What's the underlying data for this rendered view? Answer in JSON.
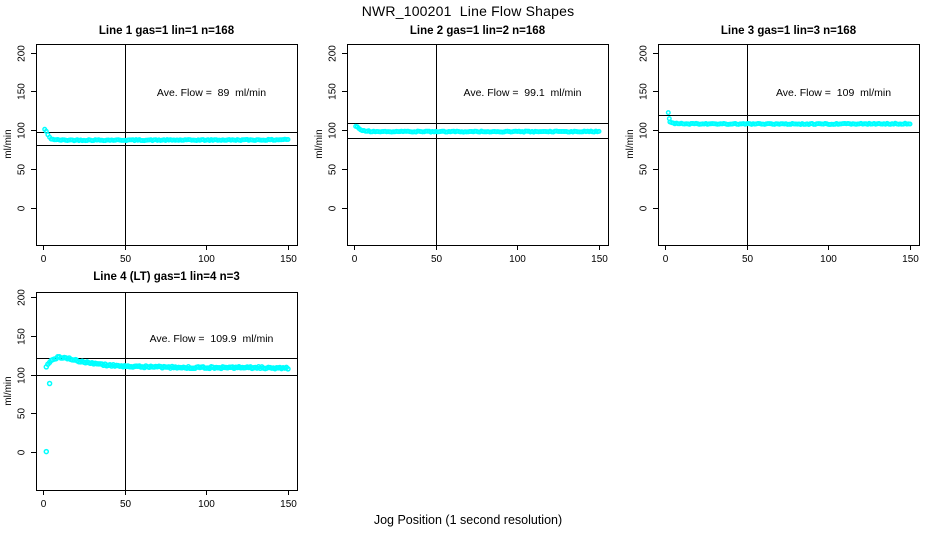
{
  "page": {
    "main_title": "NWR_100201  Line Flow Shapes",
    "x_axis_label": "Jog Position (1 second resolution)",
    "background_color": "#ffffff",
    "point_color": "#00FFFF",
    "line_color": "#000000"
  },
  "chart_data": [
    {
      "type": "scatter",
      "title": "Line 1 gas=1 lin=1 n=168",
      "annotation": "Ave. Flow =  89  ml/min",
      "ave_flow_ml_min": 89,
      "n_points": 168,
      "ylabel": "ml/min",
      "x_ticks": [
        "0",
        "50",
        "100",
        "150"
      ],
      "y_ticks": [
        "0",
        "50",
        "100",
        "150",
        "200"
      ],
      "xlim": [
        -4.3,
        155.5
      ],
      "ylim": [
        -48.4,
        211.1
      ],
      "vline_x": 50,
      "hlines": [
        97.9,
        80.1
      ],
      "series": {
        "x_start": 1,
        "x_end": 150,
        "noise": 0.7,
        "anchors": [
          [
            1,
            100.8
          ],
          [
            2,
            98.5
          ],
          [
            3,
            93.5
          ],
          [
            4,
            90.5
          ],
          [
            5,
            88.8
          ],
          [
            6,
            88
          ],
          [
            8,
            87.4
          ],
          [
            12,
            87
          ],
          [
            40,
            87
          ],
          [
            90,
            87
          ],
          [
            140,
            87.3
          ],
          [
            148,
            87.8
          ],
          [
            150,
            88
          ]
        ]
      },
      "outliers": []
    },
    {
      "type": "scatter",
      "title": "Line 2 gas=1 lin=2 n=168",
      "annotation": "Ave. Flow =  99.1  ml/min",
      "ave_flow_ml_min": 99.1,
      "n_points": 168,
      "ylabel": "ml/min",
      "x_ticks": [
        "0",
        "50",
        "100",
        "150"
      ],
      "y_ticks": [
        "0",
        "50",
        "100",
        "150",
        "200"
      ],
      "xlim": [
        -4.3,
        155.5
      ],
      "ylim": [
        -48.4,
        211.1
      ],
      "vline_x": 50,
      "hlines": [
        109.0,
        89.2
      ],
      "series": {
        "x_start": 1,
        "x_end": 150,
        "noise": 0.65,
        "anchors": [
          [
            1,
            104.8
          ],
          [
            2,
            104
          ],
          [
            3,
            102.3
          ],
          [
            4,
            100.8
          ],
          [
            5,
            99.8
          ],
          [
            7,
            98.8
          ],
          [
            10,
            98.2
          ],
          [
            16,
            98
          ],
          [
            60,
            98
          ],
          [
            120,
            98
          ],
          [
            150,
            98.2
          ]
        ]
      },
      "outliers": []
    },
    {
      "type": "scatter",
      "title": "Line 3 gas=1 lin=3 n=168",
      "annotation": "Ave. Flow =  109  ml/min",
      "ave_flow_ml_min": 109,
      "n_points": 168,
      "ylabel": "ml/min",
      "x_ticks": [
        "0",
        "50",
        "100",
        "150"
      ],
      "y_ticks": [
        "0",
        "50",
        "100",
        "150",
        "200"
      ],
      "xlim": [
        -4.3,
        155.5
      ],
      "ylim": [
        -48.4,
        211.1
      ],
      "vline_x": 50,
      "hlines": [
        119.9,
        98.1
      ],
      "series": {
        "x_start": 3,
        "x_end": 150,
        "noise": 0.65,
        "anchors": [
          [
            3,
            110.5
          ],
          [
            4,
            109.3
          ],
          [
            5,
            108.7
          ],
          [
            8,
            108.2
          ],
          [
            14,
            108
          ],
          [
            60,
            107.8
          ],
          [
            120,
            107.9
          ],
          [
            150,
            108.2
          ]
        ]
      },
      "outliers": [
        [
          2,
          122.5
        ],
        [
          2.6,
          114.8
        ]
      ]
    },
    {
      "type": "scatter",
      "title": "Line 4 (LT) gas=1 lin=4 n=3",
      "annotation": "Ave. Flow =  109.9  ml/min",
      "ave_flow_ml_min": 109.9,
      "n_points": 3,
      "ylabel": "ml/min",
      "x_ticks": [
        "0",
        "50",
        "100",
        "150"
      ],
      "y_ticks": [
        "0",
        "50",
        "100",
        "150",
        "200"
      ],
      "xlim": [
        -4.3,
        155.5
      ],
      "ylim": [
        -49.1,
        206.6
      ],
      "vline_x": 50,
      "hlines": [
        120.9,
        98.9
      ],
      "series": {
        "x_start": 2,
        "x_end": 150,
        "noise": 1.15,
        "anchors": [
          [
            2,
            110.5
          ],
          [
            3,
            113.5
          ],
          [
            5,
            117.5
          ],
          [
            7,
            120
          ],
          [
            9,
            121.8
          ],
          [
            11,
            122.3
          ],
          [
            13,
            121.8
          ],
          [
            16,
            120.3
          ],
          [
            19,
            118.8
          ],
          [
            23,
            117
          ],
          [
            27,
            115.5
          ],
          [
            32,
            113.8
          ],
          [
            38,
            112.3
          ],
          [
            45,
            111.2
          ],
          [
            55,
            110.3
          ],
          [
            70,
            109.6
          ],
          [
            90,
            109.1
          ],
          [
            110,
            108.9
          ],
          [
            130,
            108.9
          ],
          [
            150,
            108.4
          ]
        ]
      },
      "outliers": [
        [
          2,
          0.5
        ],
        [
          4,
          88.5
        ]
      ]
    }
  ]
}
